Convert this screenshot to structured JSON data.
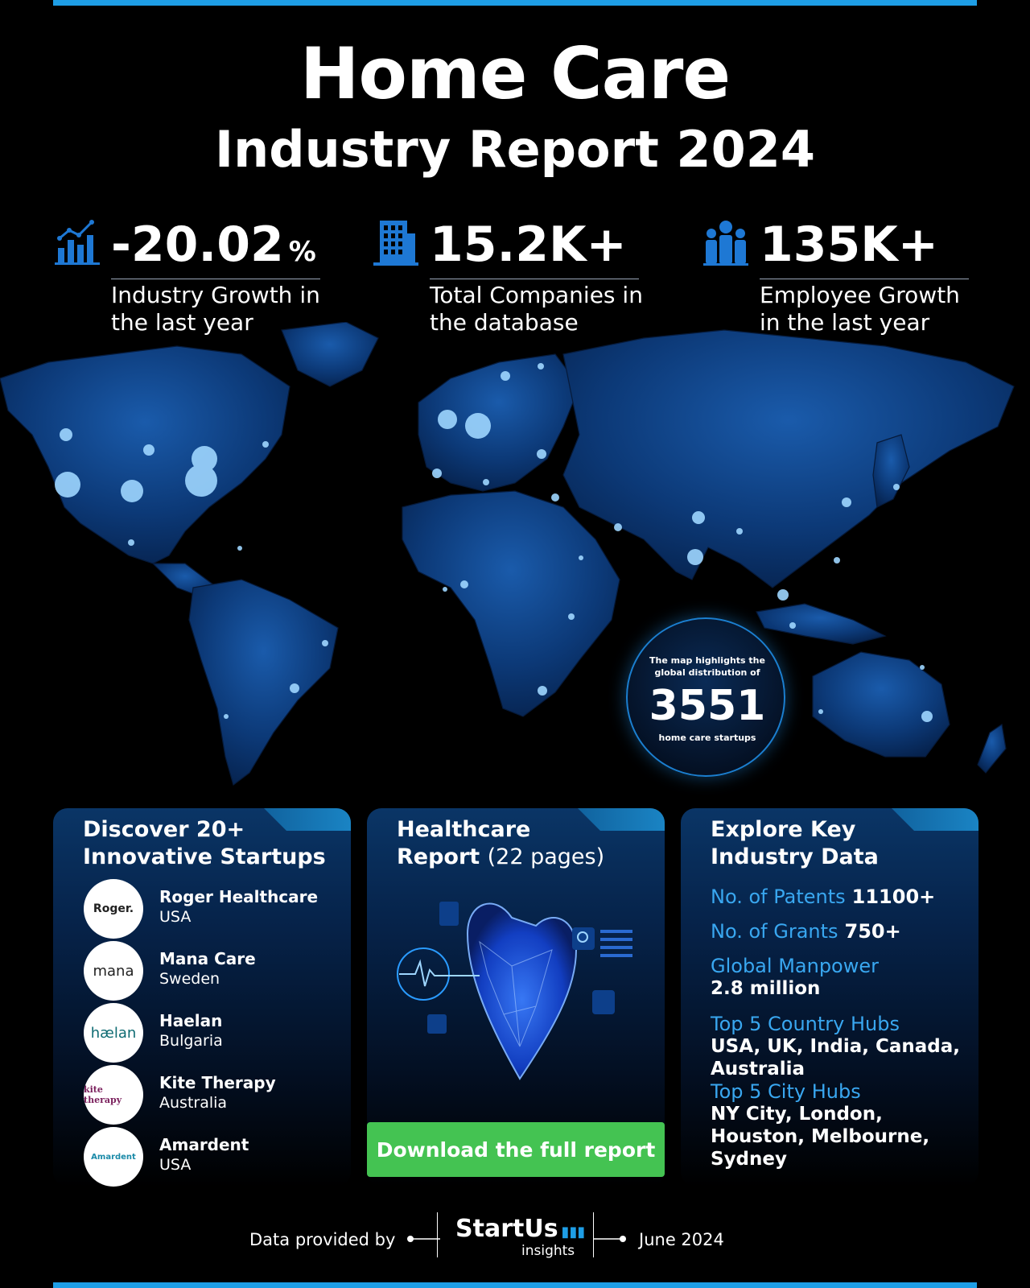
{
  "header": {
    "title": "Home Care",
    "subtitle": "Industry Report 2024"
  },
  "stats": [
    {
      "icon": "bar-chart-growth-icon",
      "value": "-20.02",
      "unit": "%",
      "description": "Industry Growth in the last year"
    },
    {
      "icon": "building-icon",
      "value": "15.2K+",
      "unit": "",
      "description": "Total Companies in the database"
    },
    {
      "icon": "people-group-icon",
      "value": "135K+",
      "unit": "",
      "description": "Employee Growth in the last year"
    }
  ],
  "map_badge": {
    "pre_text": "The map highlights the global distribution of",
    "number": "3551",
    "post_text": "home care startups"
  },
  "startups_card": {
    "title_line1": "Discover 20+",
    "title_line2": "Innovative Startups",
    "items": [
      {
        "name": "Roger Healthcare",
        "country": "USA",
        "logo_text": "Roger."
      },
      {
        "name": "Mana Care",
        "country": "Sweden",
        "logo_text": "mana"
      },
      {
        "name": "Haelan",
        "country": "Bulgaria",
        "logo_text": "hælan"
      },
      {
        "name": "Kite Therapy",
        "country": "Australia",
        "logo_text": "kite therapy"
      },
      {
        "name": "Amardent",
        "country": "USA",
        "logo_text": "Amardent"
      }
    ]
  },
  "report_card": {
    "title_bold1": "Healthcare",
    "title_bold2": "Report",
    "title_light": "(22 pages)",
    "button_label": "Download the full report"
  },
  "data_card": {
    "title_line1": "Explore Key",
    "title_line2": "Industry Data",
    "patents_label": "No. of Patents",
    "patents_value": "11100+",
    "grants_label": "No. of Grants",
    "grants_value": "750+",
    "manpower_label": "Global Manpower",
    "manpower_value": "2.8 million",
    "country_hubs_label": "Top 5 Country Hubs",
    "country_hubs_value": "USA, UK, India, Canada, Australia",
    "city_hubs_label": "Top 5 City Hubs",
    "city_hubs_value": "NY City, London, Houston, Melbourne, Sydney"
  },
  "footer": {
    "provided_by": "Data provided by",
    "brand": "StartUs",
    "brand_sub": "insights",
    "date": "June 2024"
  },
  "colors": {
    "accent_blue": "#1e9ee6",
    "label_blue": "#39a7f0",
    "button_green": "#44c352",
    "map_land": "#0d3f7e"
  }
}
